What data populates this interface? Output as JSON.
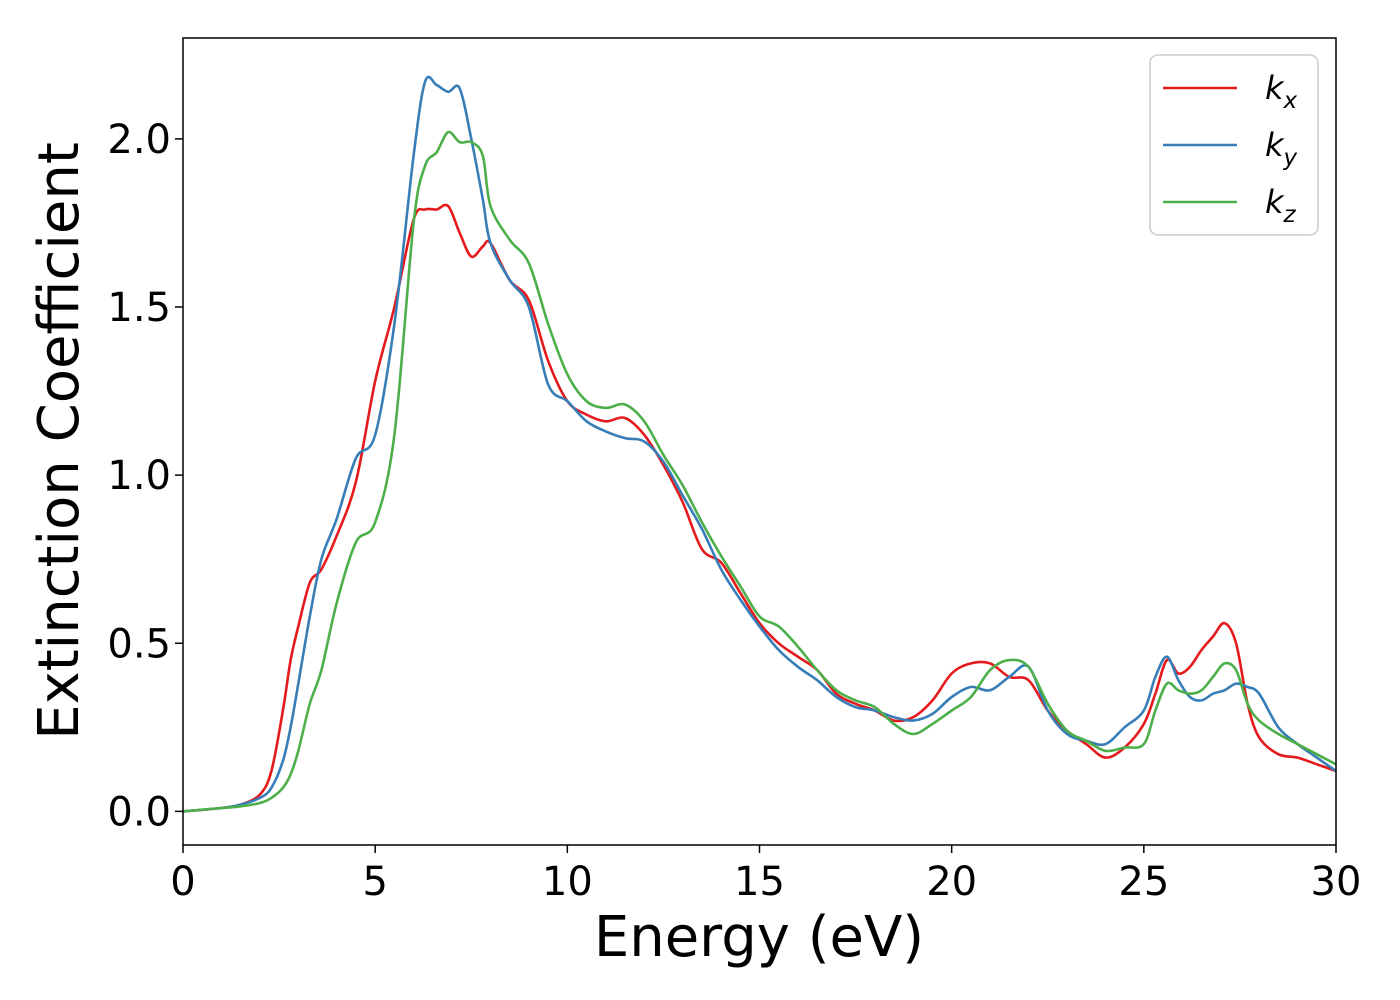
{
  "chart_data": {
    "type": "line",
    "title": "",
    "xlabel": "Energy (eV)",
    "ylabel": "Extinction Coefficient",
    "xlim": [
      0,
      30
    ],
    "ylim": [
      -0.1,
      2.3
    ],
    "xticks": [
      0,
      5,
      10,
      15,
      20,
      25,
      30
    ],
    "xtick_labels": [
      "0",
      "5",
      "10",
      "15",
      "20",
      "25",
      "30"
    ],
    "yticks": [
      0.0,
      0.5,
      1.0,
      1.5,
      2.0
    ],
    "ytick_labels": [
      "0.0",
      "0.5",
      "1.0",
      "1.5",
      "2.0"
    ],
    "grid": false,
    "legend_position": "top-right",
    "series": [
      {
        "name": "k_x",
        "legend_base": "k",
        "legend_sub": "x",
        "color": "#e41a1c",
        "x": [
          0,
          1,
          1.5,
          2,
          2.3,
          2.6,
          2.8,
          3,
          3.3,
          3.6,
          4,
          4.5,
          5,
          5.5,
          6,
          6.3,
          6.6,
          6.9,
          7.2,
          7.5,
          7.8,
          8,
          8.5,
          9,
          9.5,
          10,
          10.5,
          11,
          11.5,
          12,
          12.5,
          13,
          13.5,
          14,
          14.5,
          15,
          15.5,
          16,
          16.5,
          17,
          17.5,
          18,
          18.5,
          19,
          19.5,
          20,
          20.5,
          21,
          21.5,
          22,
          22.5,
          23,
          23.5,
          24,
          24.5,
          25,
          25.3,
          25.6,
          25.9,
          26.2,
          26.5,
          26.8,
          27.1,
          27.4,
          27.7,
          28,
          28.5,
          29,
          29.5,
          30
        ],
        "y": [
          0.0,
          0.01,
          0.02,
          0.05,
          0.12,
          0.3,
          0.45,
          0.55,
          0.68,
          0.72,
          0.82,
          0.98,
          1.28,
          1.5,
          1.76,
          1.79,
          1.79,
          1.8,
          1.72,
          1.65,
          1.68,
          1.69,
          1.58,
          1.52,
          1.34,
          1.22,
          1.18,
          1.16,
          1.17,
          1.12,
          1.03,
          0.92,
          0.78,
          0.74,
          0.65,
          0.56,
          0.5,
          0.46,
          0.42,
          0.35,
          0.32,
          0.3,
          0.27,
          0.28,
          0.33,
          0.41,
          0.44,
          0.44,
          0.4,
          0.39,
          0.3,
          0.24,
          0.2,
          0.16,
          0.19,
          0.26,
          0.35,
          0.45,
          0.41,
          0.43,
          0.48,
          0.52,
          0.56,
          0.5,
          0.32,
          0.22,
          0.17,
          0.16,
          0.14,
          0.12
        ]
      },
      {
        "name": "k_y",
        "legend_base": "k",
        "legend_sub": "y",
        "color": "#377eb8",
        "x": [
          0,
          1,
          1.5,
          2,
          2.3,
          2.6,
          2.8,
          3,
          3.3,
          3.6,
          4,
          4.5,
          5,
          5.5,
          6,
          6.3,
          6.6,
          6.9,
          7.2,
          7.5,
          7.8,
          8,
          8.5,
          9,
          9.5,
          10,
          10.5,
          11,
          11.5,
          12,
          12.5,
          13,
          13.5,
          14,
          14.5,
          15,
          15.5,
          16,
          16.5,
          17,
          17.5,
          18,
          18.5,
          19,
          19.5,
          20,
          20.5,
          21,
          21.5,
          22,
          22.5,
          23,
          23.5,
          24,
          24.5,
          25,
          25.3,
          25.6,
          25.9,
          26.2,
          26.5,
          26.8,
          27.1,
          27.4,
          27.7,
          28,
          28.5,
          29,
          29.5,
          30
        ],
        "y": [
          0.0,
          0.01,
          0.02,
          0.04,
          0.07,
          0.15,
          0.25,
          0.38,
          0.58,
          0.75,
          0.87,
          1.05,
          1.12,
          1.45,
          1.95,
          2.17,
          2.16,
          2.14,
          2.15,
          2.0,
          1.82,
          1.69,
          1.58,
          1.5,
          1.27,
          1.22,
          1.16,
          1.13,
          1.11,
          1.1,
          1.04,
          0.94,
          0.84,
          0.72,
          0.63,
          0.55,
          0.48,
          0.43,
          0.39,
          0.34,
          0.31,
          0.3,
          0.28,
          0.27,
          0.29,
          0.34,
          0.37,
          0.36,
          0.4,
          0.43,
          0.3,
          0.23,
          0.21,
          0.2,
          0.25,
          0.3,
          0.4,
          0.46,
          0.39,
          0.34,
          0.33,
          0.35,
          0.36,
          0.38,
          0.37,
          0.35,
          0.25,
          0.2,
          0.16,
          0.12
        ]
      },
      {
        "name": "k_z",
        "legend_base": "k",
        "legend_sub": "z",
        "color": "#4daf4a",
        "x": [
          0,
          1,
          1.5,
          2,
          2.3,
          2.6,
          2.8,
          3,
          3.3,
          3.6,
          4,
          4.5,
          5,
          5.5,
          6,
          6.3,
          6.6,
          6.9,
          7.2,
          7.5,
          7.8,
          8,
          8.5,
          9,
          9.5,
          10,
          10.5,
          11,
          11.5,
          12,
          12.5,
          13,
          13.5,
          14,
          14.5,
          15,
          15.5,
          16,
          16.5,
          17,
          17.5,
          18,
          18.5,
          19,
          19.5,
          20,
          20.5,
          21,
          21.5,
          22,
          22.5,
          23,
          23.5,
          24,
          24.5,
          25,
          25.3,
          25.6,
          25.9,
          26.2,
          26.5,
          26.8,
          27.1,
          27.4,
          27.7,
          28,
          28.5,
          29,
          29.5,
          30
        ],
        "y": [
          0.0,
          0.01,
          0.015,
          0.025,
          0.04,
          0.07,
          0.11,
          0.18,
          0.32,
          0.42,
          0.62,
          0.8,
          0.86,
          1.12,
          1.75,
          1.92,
          1.96,
          2.02,
          1.99,
          1.99,
          1.95,
          1.8,
          1.7,
          1.63,
          1.45,
          1.3,
          1.22,
          1.2,
          1.21,
          1.16,
          1.06,
          0.97,
          0.86,
          0.76,
          0.67,
          0.58,
          0.55,
          0.49,
          0.42,
          0.36,
          0.33,
          0.31,
          0.26,
          0.23,
          0.26,
          0.3,
          0.34,
          0.42,
          0.45,
          0.43,
          0.32,
          0.24,
          0.21,
          0.18,
          0.19,
          0.2,
          0.3,
          0.38,
          0.36,
          0.35,
          0.36,
          0.4,
          0.44,
          0.42,
          0.32,
          0.27,
          0.23,
          0.2,
          0.17,
          0.14
        ]
      }
    ]
  }
}
